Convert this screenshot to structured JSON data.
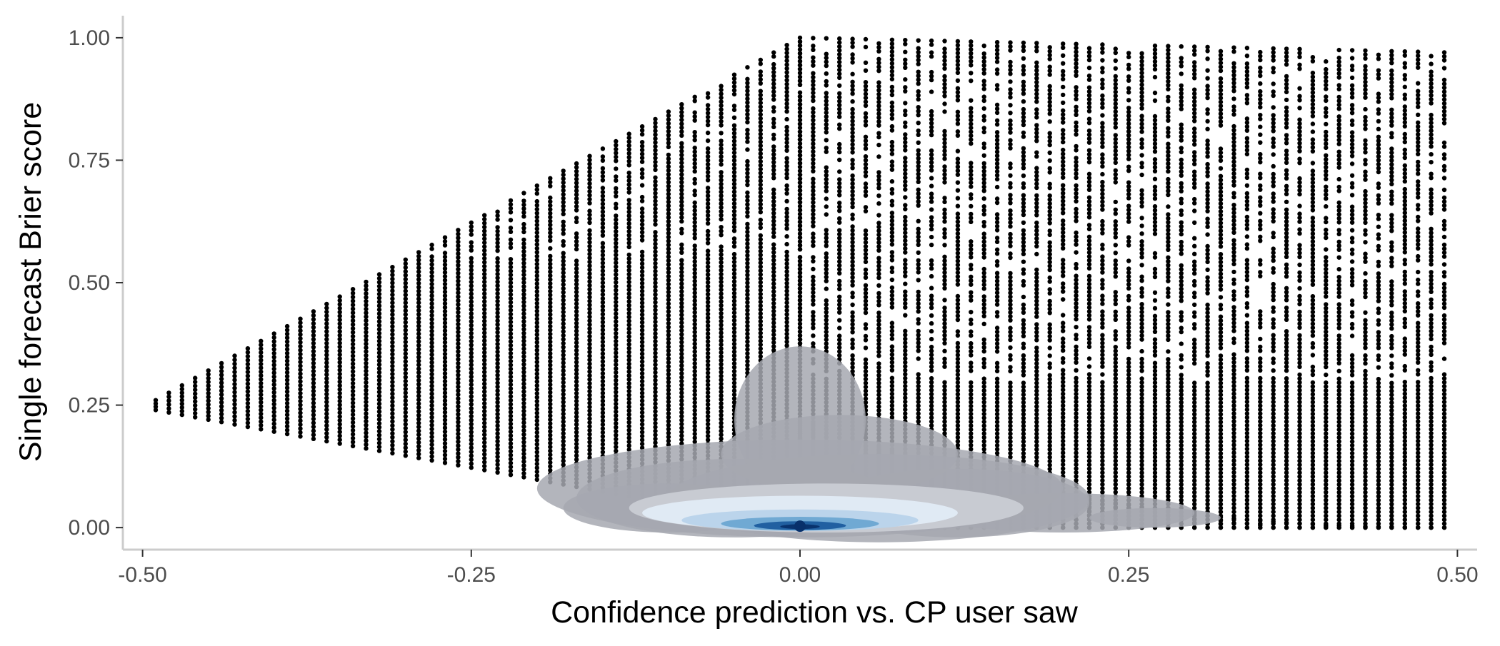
{
  "chart_data": {
    "type": "scatter",
    "title": "",
    "xlabel": "Confidence prediction vs. CP user saw",
    "ylabel": "Single forecast Brier score",
    "xlim": [
      -0.515,
      0.515
    ],
    "ylim": [
      -0.045,
      1.045
    ],
    "xticks": [
      {
        "value": -0.5,
        "label": "-0.50"
      },
      {
        "value": -0.25,
        "label": "-0.25"
      },
      {
        "value": 0.0,
        "label": "0.00"
      },
      {
        "value": 0.25,
        "label": "0.25"
      },
      {
        "value": 0.5,
        "label": "0.50"
      }
    ],
    "yticks": [
      {
        "value": 0.0,
        "label": "0.00"
      },
      {
        "value": 0.25,
        "label": "0.25"
      },
      {
        "value": 0.5,
        "label": "0.50"
      },
      {
        "value": 0.75,
        "label": "0.75"
      },
      {
        "value": 1.0,
        "label": "1.00"
      }
    ],
    "grid": false,
    "legend": "none",
    "point_color": "#000000",
    "x_step": 0.01,
    "regions": [
      {
        "name": "forecasts-below-cp",
        "x_range": [
          -0.49,
          0.0
        ],
        "y_range_at_x_start": [
          0.24,
          0.26
        ],
        "y_range_at_x_end": [
          0.0,
          1.0
        ]
      },
      {
        "name": "forecasts-above-cp",
        "x_range": [
          0.0,
          0.49
        ],
        "y_range_at_x_start": [
          0.0,
          1.0
        ],
        "y_range_at_x_end": [
          0.0,
          0.97
        ]
      }
    ],
    "lower_edge_points": [
      {
        "x": 0.3,
        "y": 0.01
      },
      {
        "x": 0.35,
        "y": 0.005
      },
      {
        "x": 0.4,
        "y": 0.003
      },
      {
        "x": 0.45,
        "y": 0.001
      },
      {
        "x": 0.49,
        "y": 0.0
      }
    ],
    "density_overlay": {
      "colors": [
        "#a6a8b0",
        "#c9ccd4",
        "#e2ebf5",
        "#b8d3ea",
        "#6ba6d2",
        "#1c5c9e",
        "#08306b"
      ],
      "peak": {
        "x": 0.0,
        "y": 0.0
      }
    }
  }
}
